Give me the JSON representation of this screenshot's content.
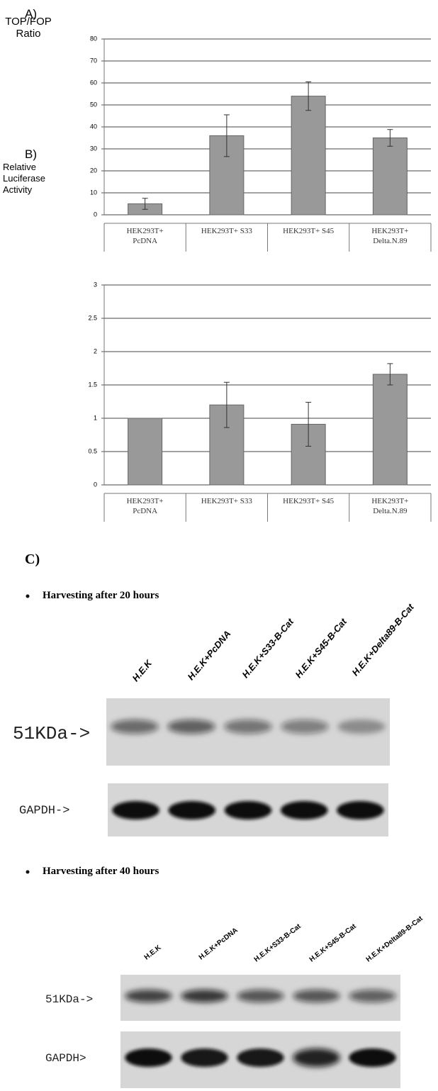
{
  "chart_data": [
    {
      "type": "bar",
      "panel_label": "A)",
      "y_label": "TOP/FOP Ratio",
      "categories": [
        "HEK293T+ PcDNA",
        "HEK293T+ S33",
        "HEK293T+ S45",
        "HEK293T+ Delta.N.89"
      ],
      "values": [
        5,
        36,
        54,
        35
      ],
      "errors": [
        2.5,
        9.5,
        6.5,
        3.8
      ],
      "color": "#999999",
      "ylim": [
        0,
        80
      ],
      "yticks": [
        0,
        10,
        20,
        30,
        40,
        50,
        60,
        70,
        80
      ],
      "grid": true
    },
    {
      "type": "bar",
      "panel_label": "B)",
      "y_label": "Relative Luciferase Activity",
      "categories": [
        "HEK293T+ PcDNA",
        "HEK293T+ S33",
        "HEK293T+ S45",
        "HEK293T+ Delta.N.89"
      ],
      "values": [
        1,
        1.2,
        0.91,
        1.66
      ],
      "errors": [
        null,
        0.34,
        0.33,
        0.16
      ],
      "color": "#999999",
      "ylim": [
        0,
        3
      ],
      "yticks": [
        0,
        0.5,
        1,
        1.5,
        2,
        2.5,
        3
      ],
      "grid": true
    }
  ],
  "panel_c": {
    "label": "C)",
    "blots": [
      {
        "heading": "Harvesting after 20 hours",
        "lanes": [
          "H.E.K",
          "H.E.K+PcDNA",
          "H.E.K+S33-B-Cat",
          "H.E.K+S45-B-Cat",
          "H.E.K+Delta89-B-Cat"
        ],
        "rows": [
          "51KDa->",
          "GAPDH->"
        ]
      },
      {
        "heading": "Harvesting after 40 hours",
        "lanes": [
          "H.E.K",
          "H.E.K+PcDNA",
          "H.E.K+S33-B-Cat",
          "H.E.K+S45-B-Cat",
          "H.E.K+Delta89-B-Cat"
        ],
        "rows": [
          "51KDa->",
          "GAPDH>"
        ]
      }
    ]
  }
}
